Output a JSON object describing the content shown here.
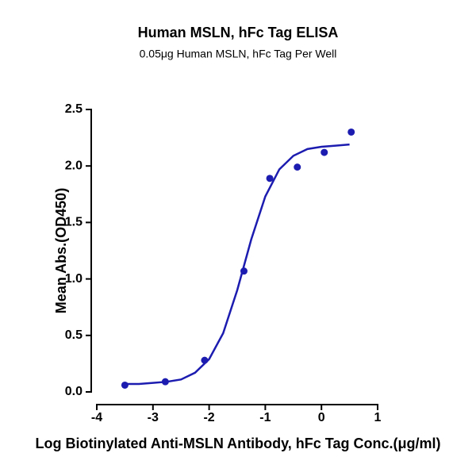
{
  "chart_data": {
    "type": "scatter",
    "title": "Human MSLN, hFc Tag ELISA",
    "subtitle": "0.05μg Human MSLN, hFc Tag Per Well",
    "x_label": "Log Biotinylated Anti-MSLN Antibody, hFc Tag Conc.(μg/ml)",
    "y_label": "Mean Abs.(OD450)",
    "xlim": [
      -4,
      1
    ],
    "xticks": [
      -4,
      -3,
      -2,
      -1,
      0,
      1
    ],
    "ylim": [
      0,
      2.5
    ],
    "yticks": [
      {
        "value": 0,
        "label": "0.0"
      },
      0.5,
      {
        "value": 1,
        "label": "1.0"
      },
      1.5,
      {
        "value": 2,
        "label": "2.0"
      },
      2.5
    ],
    "series": [
      {
        "type": "scatter",
        "color": "#1c1cb0",
        "x": [
          -3.5,
          -2.78,
          -2.08,
          -1.38,
          -0.92,
          -0.43,
          0.05,
          0.53
        ],
        "values": [
          0.06,
          0.09,
          0.28,
          1.07,
          1.89,
          1.99,
          2.12,
          2.3
        ]
      },
      {
        "type": "line",
        "color": "#1c1cb0",
        "x": [
          -3.5,
          -3.25,
          -3.0,
          -2.75,
          -2.5,
          -2.25,
          -2.0,
          -1.75,
          -1.5,
          -1.25,
          -1.0,
          -0.75,
          -0.5,
          -0.25,
          0,
          0.25,
          0.5
        ],
        "values": [
          0.07,
          0.07,
          0.08,
          0.09,
          0.11,
          0.17,
          0.29,
          0.52,
          0.9,
          1.35,
          1.73,
          1.97,
          2.09,
          2.15,
          2.17,
          2.18,
          2.19
        ]
      }
    ]
  }
}
